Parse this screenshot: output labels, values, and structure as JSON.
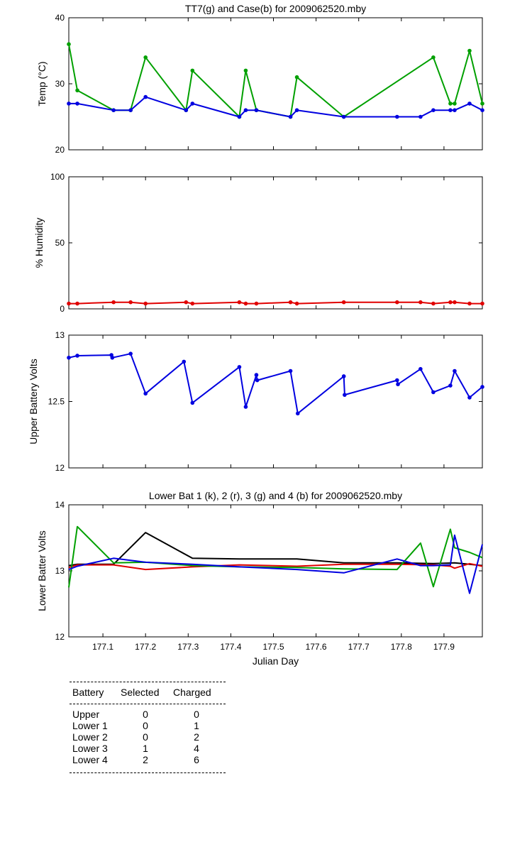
{
  "chart_data": [
    {
      "type": "line",
      "title": "TT7(g) and Case(b) for 2009062520.mby",
      "xlabel": "",
      "ylabel": "Temp  (°C)",
      "xlim": [
        177.02,
        177.99
      ],
      "ylim": [
        20,
        40
      ],
      "yticks": [
        "20",
        "30",
        "40"
      ],
      "xticks": [],
      "series": [
        {
          "name": "TT7",
          "color": "#00a000",
          "markers": true,
          "x": [
            177.02,
            177.04,
            177.125,
            177.165,
            177.2,
            177.295,
            177.31,
            177.42,
            177.435,
            177.46,
            177.54,
            177.555,
            177.665,
            177.875,
            177.915,
            177.925,
            177.96,
            177.99
          ],
          "y": [
            36,
            29,
            26,
            26,
            34,
            26,
            32,
            25,
            32,
            26,
            25,
            31,
            25,
            34,
            27,
            27,
            35,
            27
          ]
        },
        {
          "name": "Case",
          "color": "#0000e0",
          "markers": true,
          "x": [
            177.02,
            177.04,
            177.125,
            177.165,
            177.2,
            177.295,
            177.31,
            177.42,
            177.435,
            177.46,
            177.54,
            177.555,
            177.665,
            177.79,
            177.845,
            177.875,
            177.915,
            177.925,
            177.96,
            177.99
          ],
          "y": [
            27,
            27,
            26,
            26,
            28,
            26,
            27,
            25,
            26,
            26,
            25,
            26,
            25,
            25,
            25,
            26,
            26,
            26,
            27,
            26
          ]
        }
      ]
    },
    {
      "type": "line",
      "title": "",
      "xlabel": "",
      "ylabel": "% Humidity",
      "xlim": [
        177.02,
        177.99
      ],
      "ylim": [
        0,
        100
      ],
      "yticks": [
        "0",
        "50",
        "100"
      ],
      "xticks": [],
      "series": [
        {
          "name": "Humidity",
          "color": "#e00000",
          "markers": true,
          "x": [
            177.02,
            177.04,
            177.125,
            177.165,
            177.2,
            177.295,
            177.31,
            177.42,
            177.435,
            177.46,
            177.54,
            177.555,
            177.665,
            177.79,
            177.845,
            177.875,
            177.915,
            177.925,
            177.96,
            177.99
          ],
          "y": [
            4,
            4,
            5,
            5,
            4,
            5,
            4,
            5,
            4,
            4,
            5,
            4,
            5,
            5,
            5,
            4,
            5,
            5,
            4,
            4
          ]
        }
      ]
    },
    {
      "type": "line",
      "title": "",
      "xlabel": "",
      "ylabel": "Upper Battery Volts",
      "xlim": [
        177.02,
        177.99
      ],
      "ylim": [
        12,
        13
      ],
      "yticks": [
        "12",
        "12.5",
        "13"
      ],
      "xticks": [],
      "series": [
        {
          "name": "Upper",
          "color": "#0000e0",
          "markers": true,
          "x": [
            177.02,
            177.04,
            177.12,
            177.122,
            177.165,
            177.2,
            177.29,
            177.31,
            177.42,
            177.435,
            177.46,
            177.462,
            177.54,
            177.557,
            177.665,
            177.667,
            177.79,
            177.792,
            177.845,
            177.875,
            177.915,
            177.925,
            177.96,
            177.99
          ],
          "y": [
            12.83,
            12.845,
            12.85,
            12.83,
            12.86,
            12.56,
            12.8,
            12.49,
            12.76,
            12.46,
            12.7,
            12.66,
            12.73,
            12.41,
            12.69,
            12.55,
            12.66,
            12.63,
            12.745,
            12.57,
            12.62,
            12.73,
            12.53,
            12.61
          ]
        }
      ]
    },
    {
      "type": "line",
      "title": "Lower Bat 1 (k), 2 (r), 3 (g) and 4 (b) for 2009062520.mby",
      "xlabel": "Julian Day",
      "ylabel": "Lower Batter Volts",
      "xlim": [
        177.02,
        177.99
      ],
      "ylim": [
        12,
        14
      ],
      "yticks": [
        "12",
        "13",
        "14"
      ],
      "xticks": [
        "177.1",
        "177.2",
        "177.3",
        "177.4",
        "177.5",
        "177.6",
        "177.7",
        "177.8",
        "177.9"
      ],
      "series": [
        {
          "name": "1",
          "color": "#000000",
          "markers": false,
          "x": [
            177.02,
            177.04,
            177.125,
            177.2,
            177.31,
            177.42,
            177.555,
            177.665,
            177.79,
            177.875,
            177.925,
            177.96,
            177.99
          ],
          "y": [
            13.08,
            13.1,
            13.1,
            13.58,
            13.19,
            13.18,
            13.18,
            13.12,
            13.12,
            13.11,
            13.12,
            13.1,
            13.08
          ]
        },
        {
          "name": "2",
          "color": "#e00000",
          "markers": false,
          "x": [
            177.02,
            177.04,
            177.125,
            177.2,
            177.31,
            177.42,
            177.555,
            177.665,
            177.79,
            177.875,
            177.915,
            177.925,
            177.96,
            177.99
          ],
          "y": [
            13.05,
            13.09,
            13.09,
            13.02,
            13.06,
            13.09,
            13.07,
            13.1,
            13.1,
            13.09,
            13.07,
            13.04,
            13.11,
            13.07
          ]
        },
        {
          "name": "3",
          "color": "#00a000",
          "markers": false,
          "x": [
            177.02,
            177.04,
            177.125,
            177.2,
            177.31,
            177.42,
            177.555,
            177.665,
            177.79,
            177.845,
            177.875,
            177.915,
            177.925,
            177.96,
            177.99
          ],
          "y": [
            12.75,
            13.67,
            13.12,
            13.13,
            13.08,
            13.06,
            13.05,
            13.03,
            13.02,
            13.42,
            12.76,
            13.63,
            13.35,
            13.28,
            13.2
          ]
        },
        {
          "name": "4",
          "color": "#0000e0",
          "markers": false,
          "x": [
            177.02,
            177.04,
            177.125,
            177.2,
            177.31,
            177.42,
            177.555,
            177.665,
            177.79,
            177.845,
            177.875,
            177.915,
            177.925,
            177.96,
            177.99
          ],
          "y": [
            13.02,
            13.07,
            13.19,
            13.13,
            13.1,
            13.06,
            13.02,
            12.97,
            13.18,
            13.08,
            13.08,
            13.09,
            13.54,
            12.66,
            13.4
          ]
        }
      ]
    }
  ],
  "battery_table": {
    "headers": [
      "Battery",
      "Selected",
      "Charged"
    ],
    "rows": [
      [
        "Upper",
        "0",
        "0"
      ],
      [
        "Lower 1",
        "0",
        "1"
      ],
      [
        "Lower 2",
        "0",
        "2"
      ],
      [
        "Lower 3",
        "1",
        "4"
      ],
      [
        "Lower 4",
        "2",
        "6"
      ]
    ]
  }
}
